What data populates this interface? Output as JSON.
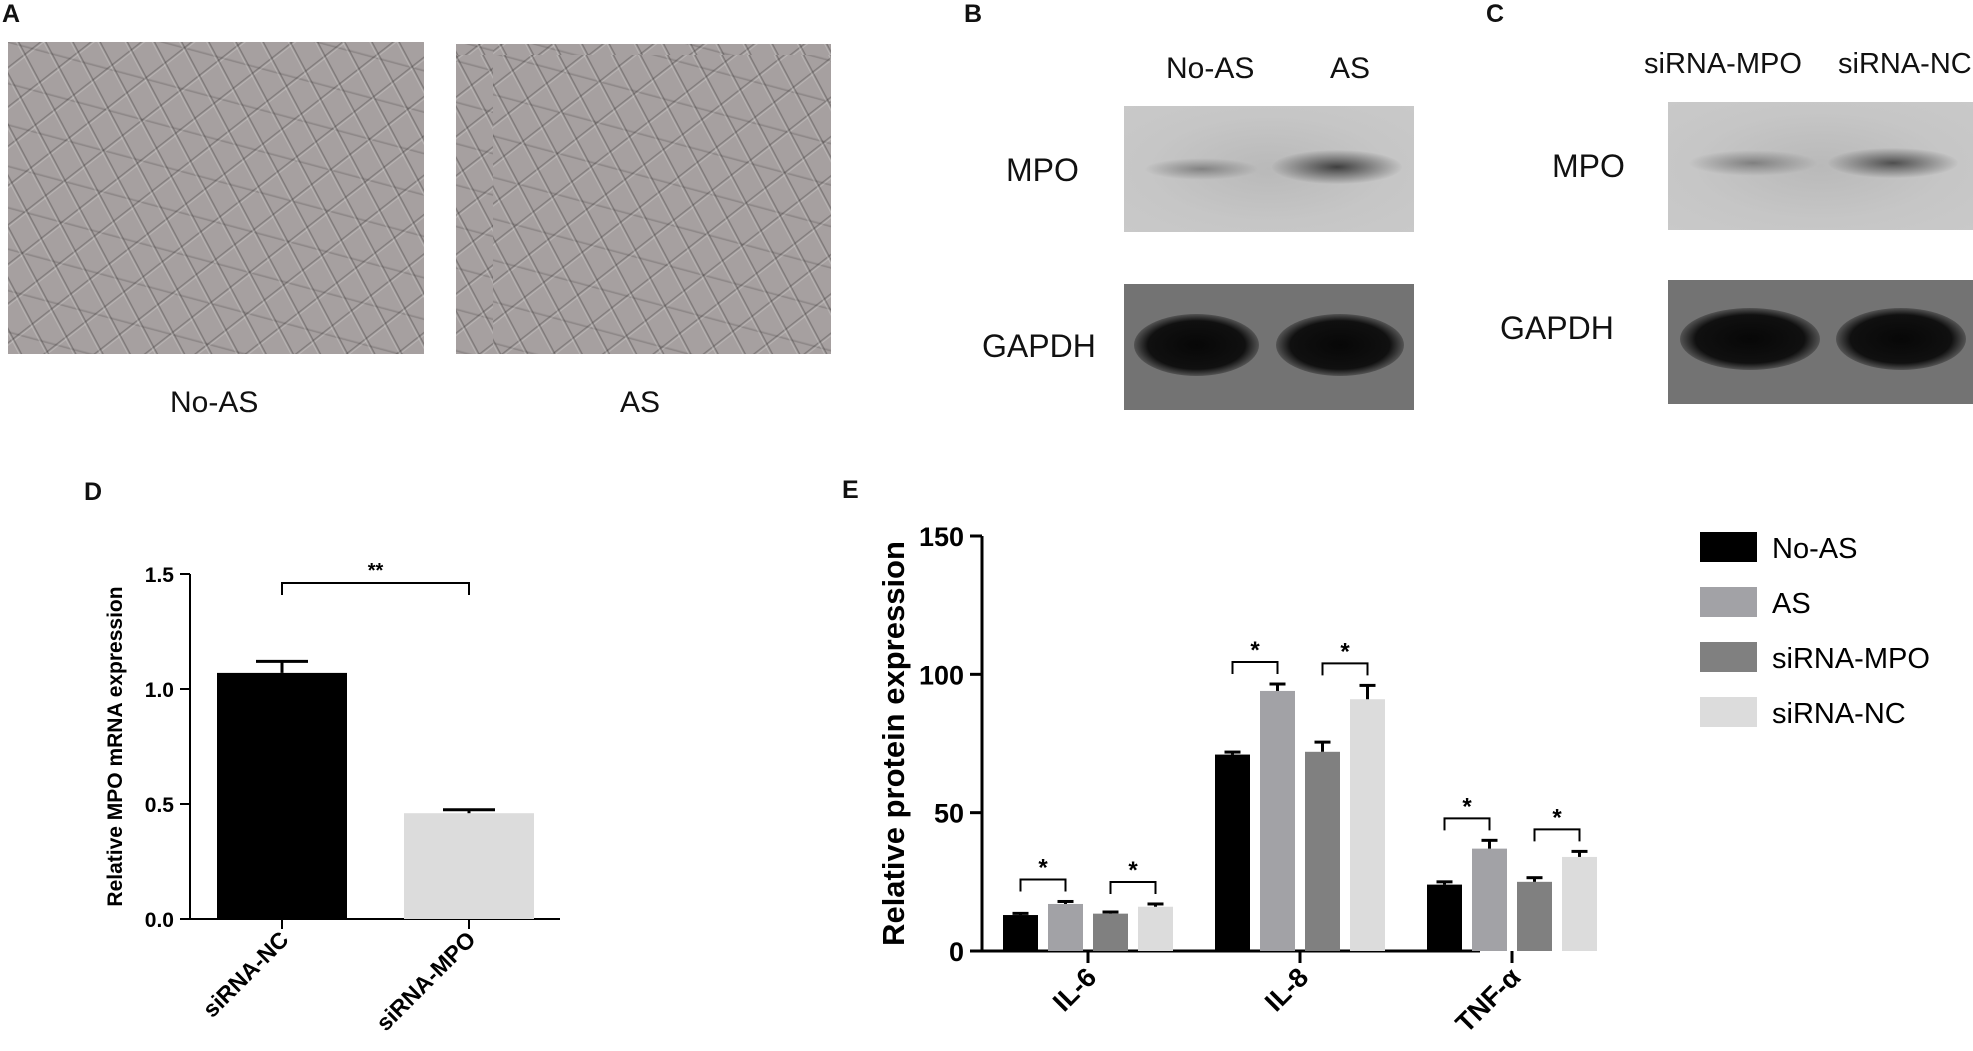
{
  "panels": {
    "A": {
      "label": "A",
      "images": [
        {
          "caption": "No-AS"
        },
        {
          "caption": "AS"
        }
      ]
    },
    "B": {
      "label": "B",
      "lanes": [
        "No-AS",
        "AS"
      ],
      "rows": [
        "MPO",
        "GAPDH"
      ],
      "mpo_band_intensity": [
        0.35,
        0.85
      ]
    },
    "C": {
      "label": "C",
      "lanes": [
        "siRNA-MPO",
        "siRNA-NC"
      ],
      "rows": [
        "MPO",
        "GAPDH"
      ],
      "mpo_band_intensity": [
        0.4,
        0.75
      ]
    },
    "D": {
      "label": "D"
    },
    "E": {
      "label": "E"
    }
  },
  "colors": {
    "black": "#000000",
    "light_gray": "#dcdcdc",
    "as_gray": "#a2a2a6",
    "sirna_mpo_gray": "#808080",
    "sirna_nc_gray": "#dcdcdc"
  },
  "chart_data": [
    {
      "panel": "D",
      "type": "bar",
      "categories": [
        "siRNA-NC",
        "siRNA-MPO"
      ],
      "values": [
        1.07,
        0.46
      ],
      "errors": [
        0.05,
        0.015
      ],
      "bar_colors": [
        "#000000",
        "#dcdcdc"
      ],
      "ylabel": "Relative MPO mRNA expression",
      "xlabel": "",
      "ylim": [
        0,
        1.5
      ],
      "yticks": [
        "0.0",
        "0.5",
        "1.0",
        "1.5"
      ],
      "significance": [
        {
          "between": [
            0,
            1
          ],
          "label": "**"
        }
      ]
    },
    {
      "panel": "E",
      "type": "bar",
      "categories": [
        "IL-6",
        "IL-8",
        "TNF-α"
      ],
      "series": [
        {
          "name": "No-AS",
          "color": "#000000",
          "values": [
            13,
            71,
            24
          ],
          "errors": [
            0.6,
            0.9,
            1.0
          ]
        },
        {
          "name": "AS",
          "color": "#a2a2a6",
          "values": [
            17,
            94,
            37
          ],
          "errors": [
            0.9,
            2.5,
            3.0
          ]
        },
        {
          "name": "siRNA-MPO",
          "color": "#808080",
          "values": [
            13.5,
            72,
            25
          ],
          "errors": [
            0.6,
            3.5,
            1.5
          ]
        },
        {
          "name": "siRNA-NC",
          "color": "#dcdcdc",
          "values": [
            16,
            91,
            34
          ],
          "errors": [
            1.0,
            5.0,
            2.0
          ]
        }
      ],
      "ylabel": "Relative protein expression",
      "xlabel": "",
      "ylim": [
        0,
        150
      ],
      "yticks": [
        "0",
        "50",
        "100",
        "150"
      ],
      "significance": [
        {
          "category": 0,
          "between": [
            0,
            1
          ],
          "label": "*"
        },
        {
          "category": 0,
          "between": [
            2,
            3
          ],
          "label": "*"
        },
        {
          "category": 1,
          "between": [
            0,
            1
          ],
          "label": "*"
        },
        {
          "category": 1,
          "between": [
            2,
            3
          ],
          "label": "*"
        },
        {
          "category": 2,
          "between": [
            0,
            1
          ],
          "label": "*"
        },
        {
          "category": 2,
          "between": [
            2,
            3
          ],
          "label": "*"
        }
      ],
      "legend_position": "right"
    }
  ]
}
